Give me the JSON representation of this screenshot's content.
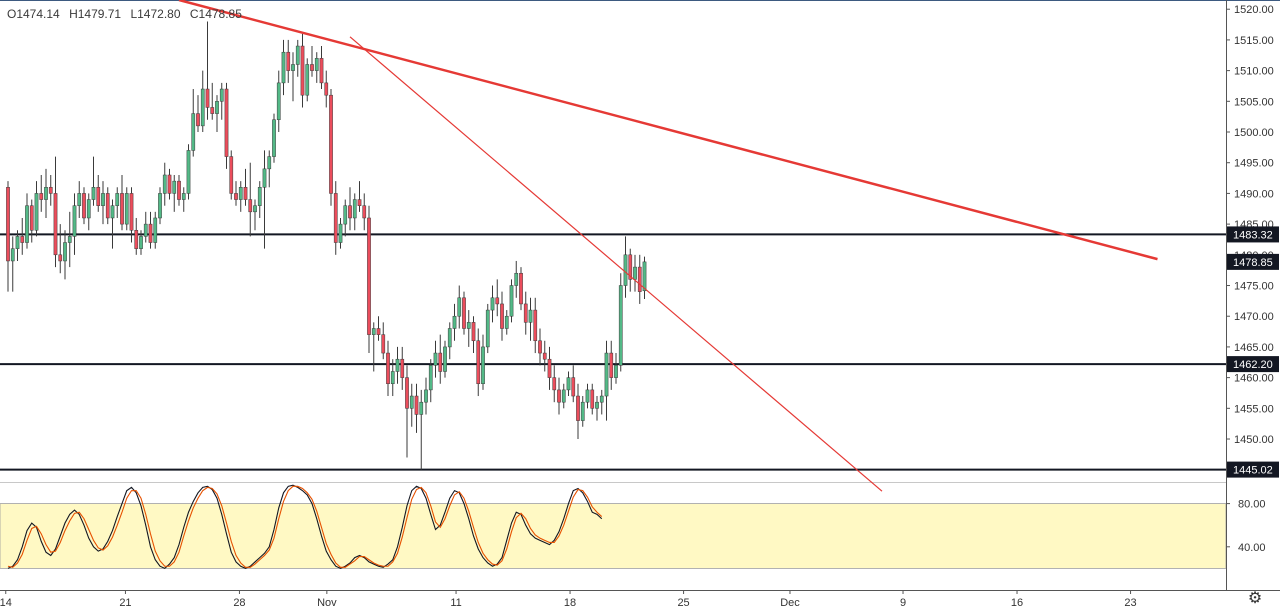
{
  "legend": {
    "open": "O1474.14",
    "high": "H1479.71",
    "low": "L1472.80",
    "close": "C1478.85"
  },
  "colors": {
    "up": "#53b987",
    "down": "#eb4d5c",
    "trendline": "#e53935",
    "level": "#131722",
    "stoch_k": "#131722",
    "stoch_d": "#e65100",
    "stoch_band": "#fff9c4",
    "price_tag": "#131722"
  },
  "icons": {
    "settings": "gear-icon"
  },
  "chart_data": [
    {
      "type": "candlestick",
      "price_axis": {
        "min": 1443,
        "max": 1521.5,
        "ticks": [
          1520,
          1515,
          1510,
          1505,
          1500,
          1495,
          1490,
          1485,
          1480,
          1475,
          1470,
          1465,
          1460,
          1455,
          1450
        ]
      },
      "time_axis": {
        "ticks": [
          {
            "label": "14",
            "bar": 0
          },
          {
            "label": "21",
            "bar": 25.2
          },
          {
            "label": "28",
            "bar": 49.2
          },
          {
            "label": "Nov",
            "bar": 67.6
          },
          {
            "label": "11",
            "bar": 94.8
          },
          {
            "label": "18",
            "bar": 118.8
          },
          {
            "label": "25",
            "bar": 142.7
          },
          {
            "label": "Dec",
            "bar": 165.1
          },
          {
            "label": "9",
            "bar": 188.9
          },
          {
            "label": "16",
            "bar": 212.9
          },
          {
            "label": "23",
            "bar": 236.8
          }
        ],
        "bar_count_visible": 246,
        "bar_offset": -3
      },
      "price_tags": [
        {
          "label": "1483.32",
          "value": 1483.32
        },
        {
          "label": "1478.85",
          "value": 1478.85
        },
        {
          "label": "1462.20",
          "value": 1462.2
        },
        {
          "label": "1445.02",
          "value": 1445.02
        }
      ],
      "horizontal_levels": [
        1483.32,
        1462.2,
        1445.02
      ],
      "trendlines": [
        {
          "from": {
            "bar": 36,
            "price": 1521.5
          },
          "to": {
            "bar": 242,
            "price": 1479.3
          },
          "width": 2.5
        },
        {
          "from": {
            "bar": 72,
            "price": 1515.5
          },
          "to": {
            "bar": 184,
            "price": 1441.5
          },
          "width": 1.2
        }
      ],
      "ohlc": [
        [
          1491,
          1492,
          1474,
          1479
        ],
        [
          1479,
          1483,
          1474,
          1481
        ],
        [
          1481,
          1484,
          1479,
          1483
        ],
        [
          1483,
          1486,
          1480,
          1482
        ],
        [
          1482,
          1490,
          1481,
          1488
        ],
        [
          1488,
          1489,
          1482,
          1484
        ],
        [
          1484,
          1492,
          1483,
          1490
        ],
        [
          1490,
          1493,
          1487,
          1489
        ],
        [
          1489,
          1494,
          1486,
          1491
        ],
        [
          1491,
          1493,
          1488,
          1490
        ],
        [
          1490,
          1496,
          1478,
          1480
        ],
        [
          1480,
          1485,
          1477,
          1479
        ],
        [
          1479,
          1484,
          1476,
          1482
        ],
        [
          1482,
          1487,
          1478,
          1483
        ],
        [
          1483,
          1490,
          1480,
          1488
        ],
        [
          1488,
          1492,
          1486,
          1490
        ],
        [
          1490,
          1491,
          1485,
          1486
        ],
        [
          1486,
          1490,
          1484,
          1489
        ],
        [
          1489,
          1496,
          1488,
          1491
        ],
        [
          1491,
          1493,
          1487,
          1488
        ],
        [
          1488,
          1492,
          1485,
          1490
        ],
        [
          1490,
          1491,
          1485,
          1486
        ],
        [
          1486,
          1489,
          1481,
          1488
        ],
        [
          1488,
          1491,
          1486,
          1490
        ],
        [
          1490,
          1493,
          1484,
          1485
        ],
        [
          1485,
          1491,
          1484,
          1490
        ],
        [
          1490,
          1491,
          1482,
          1484
        ],
        [
          1484,
          1486,
          1480,
          1481
        ],
        [
          1481,
          1484,
          1480,
          1483
        ],
        [
          1483,
          1487,
          1482,
          1485
        ],
        [
          1485,
          1487,
          1481,
          1482
        ],
        [
          1482,
          1487,
          1481,
          1486
        ],
        [
          1486,
          1491,
          1485,
          1490
        ],
        [
          1490,
          1495,
          1488,
          1493
        ],
        [
          1493,
          1494,
          1489,
          1490
        ],
        [
          1490,
          1493,
          1487,
          1492
        ],
        [
          1492,
          1493,
          1488,
          1489
        ],
        [
          1489,
          1491,
          1487,
          1490
        ],
        [
          1490,
          1498,
          1489,
          1497
        ],
        [
          1497,
          1507,
          1496,
          1503
        ],
        [
          1503,
          1506,
          1500,
          1501
        ],
        [
          1501,
          1510,
          1500,
          1507
        ],
        [
          1507,
          1518,
          1502,
          1504
        ],
        [
          1504,
          1508,
          1502,
          1503
        ],
        [
          1503,
          1506,
          1500,
          1505
        ],
        [
          1505,
          1508,
          1502,
          1507
        ],
        [
          1507,
          1508,
          1494,
          1496
        ],
        [
          1496,
          1497,
          1489,
          1490
        ],
        [
          1490,
          1492,
          1488,
          1489
        ],
        [
          1489,
          1492,
          1487,
          1491
        ],
        [
          1491,
          1494,
          1488,
          1489
        ],
        [
          1489,
          1495,
          1483,
          1487
        ],
        [
          1487,
          1489,
          1484,
          1488
        ],
        [
          1488,
          1492,
          1486,
          1491
        ],
        [
          1491,
          1497,
          1481,
          1494
        ],
        [
          1494,
          1497,
          1491,
          1496
        ],
        [
          1496,
          1503,
          1495,
          1502
        ],
        [
          1502,
          1510,
          1500,
          1508
        ],
        [
          1508,
          1515,
          1506,
          1513
        ],
        [
          1513,
          1515,
          1508,
          1510
        ],
        [
          1510,
          1513,
          1505,
          1511
        ],
        [
          1511,
          1515,
          1509,
          1514
        ],
        [
          1514,
          1516,
          1504,
          1506
        ],
        [
          1506,
          1512,
          1505,
          1511
        ],
        [
          1511,
          1514,
          1509,
          1510
        ],
        [
          1510,
          1513,
          1508,
          1512
        ],
        [
          1512,
          1514,
          1507,
          1508
        ],
        [
          1508,
          1510,
          1504,
          1506
        ],
        [
          1506,
          1507,
          1488,
          1490
        ],
        [
          1490,
          1492,
          1480,
          1482
        ],
        [
          1482,
          1486,
          1481,
          1485
        ],
        [
          1485,
          1489,
          1483,
          1488
        ],
        [
          1488,
          1491,
          1484,
          1486
        ],
        [
          1486,
          1490,
          1484,
          1489
        ],
        [
          1489,
          1492,
          1487,
          1488
        ],
        [
          1488,
          1490,
          1484,
          1486
        ],
        [
          1486,
          1488,
          1464,
          1467
        ],
        [
          1467,
          1469,
          1461,
          1468
        ],
        [
          1468,
          1470,
          1466,
          1467
        ],
        [
          1467,
          1469,
          1463,
          1464
        ],
        [
          1464,
          1466,
          1457,
          1459
        ],
        [
          1459,
          1463,
          1457,
          1461
        ],
        [
          1461,
          1465,
          1459,
          1463
        ],
        [
          1463,
          1465,
          1458,
          1460
        ],
        [
          1460,
          1462,
          1447,
          1455
        ],
        [
          1455,
          1459,
          1452,
          1457
        ],
        [
          1457,
          1459,
          1451,
          1454
        ],
        [
          1454,
          1458,
          1445,
          1456
        ],
        [
          1456,
          1460,
          1454,
          1458
        ],
        [
          1458,
          1463,
          1456,
          1462
        ],
        [
          1462,
          1466,
          1460,
          1464
        ],
        [
          1464,
          1467,
          1459,
          1461
        ],
        [
          1461,
          1466,
          1460,
          1465
        ],
        [
          1465,
          1469,
          1463,
          1468
        ],
        [
          1468,
          1472,
          1466,
          1470
        ],
        [
          1470,
          1475,
          1468,
          1473
        ],
        [
          1473,
          1474,
          1467,
          1468
        ],
        [
          1468,
          1471,
          1465,
          1469
        ],
        [
          1469,
          1470,
          1464,
          1466
        ],
        [
          1466,
          1468,
          1457,
          1459
        ],
        [
          1459,
          1467,
          1458,
          1465
        ],
        [
          1465,
          1472,
          1464,
          1471
        ],
        [
          1471,
          1475,
          1469,
          1473
        ],
        [
          1473,
          1476,
          1470,
          1472
        ],
        [
          1472,
          1474,
          1466,
          1468
        ],
        [
          1468,
          1471,
          1467,
          1470
        ],
        [
          1470,
          1476,
          1469,
          1475
        ],
        [
          1475,
          1479,
          1473,
          1477
        ],
        [
          1477,
          1478,
          1471,
          1472
        ],
        [
          1472,
          1474,
          1467,
          1469
        ],
        [
          1469,
          1473,
          1466,
          1471
        ],
        [
          1471,
          1473,
          1464,
          1466
        ],
        [
          1466,
          1468,
          1462,
          1464
        ],
        [
          1464,
          1466,
          1461,
          1463
        ],
        [
          1463,
          1465,
          1458,
          1460
        ],
        [
          1460,
          1462,
          1456,
          1458
        ],
        [
          1458,
          1460,
          1454,
          1456
        ],
        [
          1456,
          1459,
          1455,
          1458
        ],
        [
          1458,
          1461,
          1457,
          1460
        ],
        [
          1460,
          1462,
          1456,
          1457
        ],
        [
          1457,
          1459,
          1450,
          1453
        ],
        [
          1453,
          1457,
          1452,
          1456
        ],
        [
          1456,
          1459,
          1455,
          1458
        ],
        [
          1458,
          1459,
          1454,
          1455
        ],
        [
          1455,
          1457,
          1453,
          1456
        ],
        [
          1456,
          1458,
          1454,
          1457
        ],
        [
          1457,
          1466,
          1453,
          1464
        ],
        [
          1464,
          1466,
          1458,
          1460
        ],
        [
          1460,
          1464,
          1459,
          1462
        ],
        [
          1462,
          1477,
          1461,
          1475
        ],
        [
          1475,
          1483,
          1473,
          1480
        ],
        [
          1480,
          1481,
          1474,
          1476
        ],
        [
          1476,
          1480,
          1474,
          1478
        ],
        [
          1478,
          1480,
          1472,
          1474
        ],
        [
          1474.14,
          1479.71,
          1472.8,
          1478.85
        ]
      ]
    },
    {
      "type": "line",
      "indicator": "stochastic",
      "y_range": [
        0,
        100
      ],
      "band": [
        20,
        80
      ],
      "tick_labels": [
        {
          "label": "80.00",
          "value": 80
        },
        {
          "label": "40.00",
          "value": 40
        }
      ],
      "series": [
        {
          "values": [
            20,
            22,
            28,
            40,
            55,
            62,
            58,
            45,
            35,
            32,
            38,
            50,
            62,
            70,
            74,
            70,
            60,
            48,
            40,
            36,
            38,
            45,
            55,
            68,
            80,
            92,
            95,
            90,
            78,
            60,
            40,
            28,
            22,
            20,
            24,
            30,
            42,
            58,
            72,
            82,
            90,
            95,
            96,
            93,
            85,
            70,
            52,
            35,
            26,
            22,
            20,
            22,
            26,
            30,
            34,
            40,
            56,
            76,
            90,
            96,
            97,
            95,
            92,
            88,
            80,
            66,
            50,
            36,
            28,
            22,
            20,
            22,
            25,
            30,
            32,
            30,
            26,
            24,
            22,
            21,
            24,
            28,
            40,
            58,
            78,
            92,
            96,
            94,
            85,
            70,
            56,
            60,
            72,
            85,
            92,
            90,
            80,
            66,
            50,
            38,
            30,
            25,
            22,
            24,
            30,
            46,
            62,
            72,
            70,
            60,
            52,
            48,
            46,
            44,
            42,
            46,
            54,
            66,
            80,
            92,
            94,
            90,
            82,
            72,
            70,
            66
          ]
        },
        {
          "values": [
            22,
            21,
            25,
            33,
            46,
            57,
            59,
            52,
            42,
            35,
            36,
            44,
            55,
            64,
            71,
            72,
            66,
            56,
            46,
            39,
            37,
            41,
            49,
            60,
            72,
            85,
            92,
            92,
            85,
            70,
            52,
            36,
            27,
            22,
            22,
            26,
            35,
            50,
            64,
            76,
            85,
            92,
            95,
            94,
            89,
            78,
            62,
            45,
            32,
            25,
            21,
            21,
            24,
            28,
            32,
            37,
            48,
            66,
            82,
            92,
            96,
            96,
            94,
            90,
            84,
            73,
            58,
            43,
            33,
            25,
            21,
            21,
            24,
            27,
            31,
            31,
            28,
            25,
            23,
            22,
            22,
            26,
            34,
            49,
            67,
            84,
            93,
            95,
            90,
            78,
            63,
            58,
            66,
            78,
            88,
            91,
            85,
            73,
            58,
            44,
            34,
            28,
            24,
            23,
            27,
            38,
            54,
            67,
            71,
            66,
            57,
            51,
            48,
            46,
            44,
            44,
            50,
            60,
            73,
            86,
            93,
            92,
            86,
            77,
            72,
            68
          ]
        }
      ]
    }
  ]
}
